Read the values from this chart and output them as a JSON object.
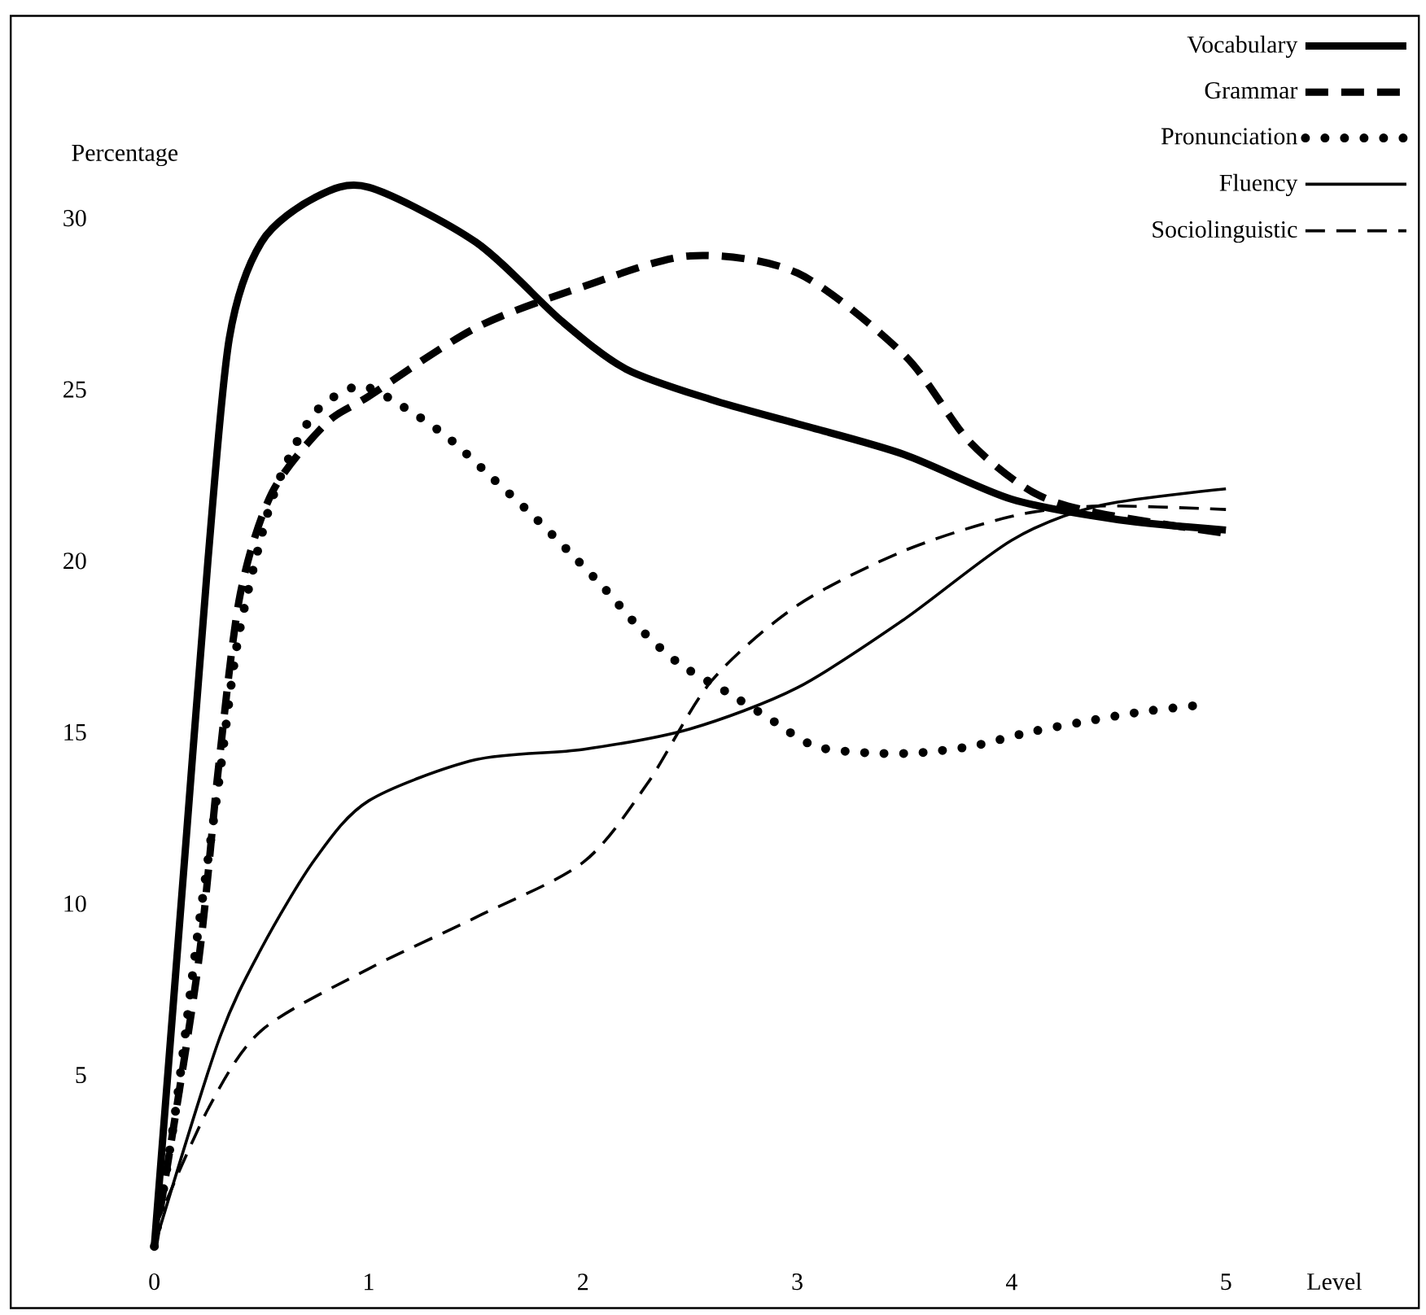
{
  "chart_data": {
    "type": "line",
    "xlabel": "Level",
    "ylabel": "Percentage",
    "xlim": [
      -0.67,
      5.9
    ],
    "ylim": [
      -1.8,
      35.9
    ],
    "xticks": [
      0,
      1,
      2,
      3,
      4,
      5
    ],
    "yticks": [
      5,
      10,
      15,
      20,
      25,
      30
    ],
    "legend": "top right",
    "series": [
      {
        "name": "Vocabulary",
        "color": "#000000",
        "line_style": "solid",
        "x": [
          0,
          0.15,
          0.25,
          0.35,
          0.5,
          0.75,
          1,
          1.5,
          1.9,
          2.2,
          2.6,
          3,
          3.5,
          4,
          4.5,
          5
        ],
        "values": [
          0,
          12,
          20,
          26.5,
          29.3,
          30.6,
          30.9,
          29.3,
          27,
          25.6,
          24.7,
          24,
          23.1,
          21.8,
          21.2,
          20.9
        ]
      },
      {
        "name": "Grammar",
        "color": "#000000",
        "line_style": "dashed",
        "x": [
          0,
          0.2,
          0.3,
          0.4,
          0.55,
          0.8,
          1,
          1.5,
          2,
          2.5,
          3,
          3.5,
          3.8,
          4.1,
          4.4,
          5
        ],
        "values": [
          0,
          8,
          14,
          19,
          22,
          24,
          24.8,
          26.8,
          28,
          28.9,
          28.4,
          26,
          23.5,
          22,
          21.4,
          20.8
        ]
      },
      {
        "name": "Pronunciation",
        "color": "#000000",
        "line_style": "dotted",
        "x": [
          0,
          0.1,
          0.2,
          0.3,
          0.39,
          0.52,
          0.62,
          0.76,
          0.96,
          1.16,
          1.37,
          1.58,
          1.77,
          1.93,
          2.1,
          2.27,
          2.45,
          2.69,
          2.87,
          3.08,
          3.33,
          3.56,
          3.82,
          4.08,
          4.33,
          4.61,
          4.89
        ],
        "values": [
          0,
          4,
          9,
          13.5,
          17.7,
          21.2,
          22.9,
          24.4,
          25.1,
          24.5,
          23.6,
          22.4,
          21.3,
          20.3,
          19.2,
          18,
          17,
          16.1,
          15.4,
          14.6,
          14.4,
          14.4,
          14.6,
          15,
          15.3,
          15.6,
          15.8
        ]
      },
      {
        "name": "Fluency",
        "color": "#000000",
        "line_style": "solid",
        "x": [
          0,
          0.3,
          0.5,
          0.75,
          1,
          1.5,
          2,
          2.5,
          3,
          3.5,
          4,
          4.4,
          5
        ],
        "values": [
          0,
          6,
          8.7,
          11.3,
          13,
          14.2,
          14.5,
          15.1,
          16.3,
          18.3,
          20.6,
          21.6,
          22.1
        ]
      },
      {
        "name": "Sociolinguistic",
        "color": "#000000",
        "line_style": "dashed",
        "x": [
          0,
          0.25,
          0.5,
          1,
          1.5,
          2,
          2.3,
          2.6,
          3,
          3.5,
          4,
          4.4,
          5
        ],
        "values": [
          0.5,
          4,
          6.3,
          8.1,
          9.6,
          11.2,
          13.5,
          16.5,
          18.7,
          20.3,
          21.3,
          21.6,
          21.5
        ]
      }
    ]
  }
}
